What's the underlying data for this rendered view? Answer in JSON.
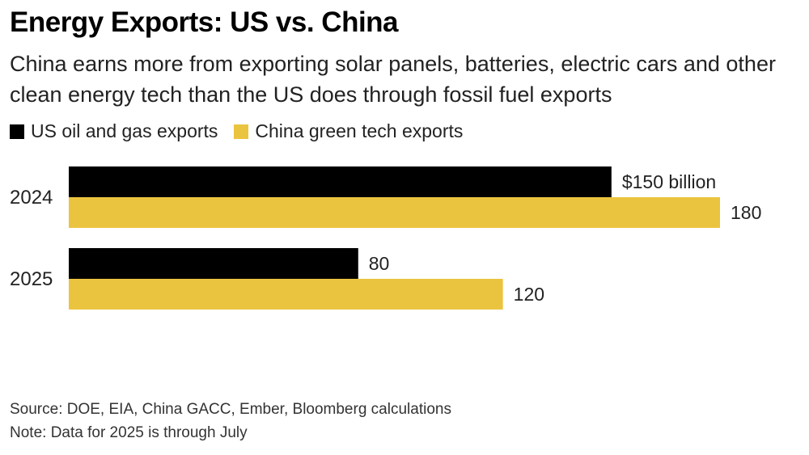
{
  "header": {
    "title": "Energy Exports: US vs. China",
    "subtitle": "China earns more from exporting solar panels, batteries, electric cars and other clean energy tech than the US does through fossil fuel exports"
  },
  "legend": [
    {
      "label": "US oil and gas exports",
      "color": "#000000"
    },
    {
      "label": "China green tech exports",
      "color": "#EBC43F"
    }
  ],
  "chart_data": {
    "type": "bar",
    "orientation": "horizontal",
    "categories": [
      "2024",
      "2025"
    ],
    "series": [
      {
        "name": "US oil and gas exports",
        "color": "#000000",
        "values": [
          150,
          80
        ],
        "labels": [
          "$150 billion",
          "80"
        ]
      },
      {
        "name": "China green tech exports",
        "color": "#EBC43F",
        "values": [
          180,
          120
        ],
        "labels": [
          "180",
          "120"
        ]
      }
    ],
    "title": "Energy Exports: US vs. China",
    "xlabel": "",
    "ylabel": "",
    "xlim": [
      0,
      180
    ],
    "grid": false,
    "legend_position": "top-left"
  },
  "footer": {
    "source": "Source: DOE, EIA, China GACC, Ember, Bloomberg calculations",
    "note": "Note: Data for 2025 is through July"
  }
}
